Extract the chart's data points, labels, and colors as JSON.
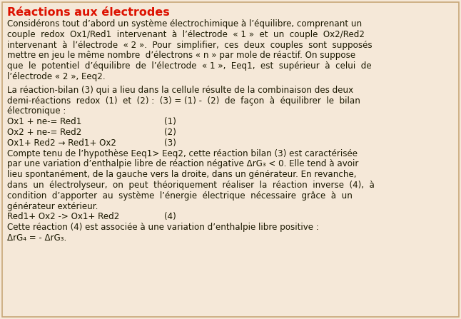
{
  "title": "Réactions aux électrodes",
  "title_color": "#dd1100",
  "bg_color": "#f5e8d8",
  "text_color": "#1a1800",
  "border_color": "#c8a878",
  "font_size": 8.6,
  "title_font_size": 11.5,
  "lines": [
    {
      "type": "title",
      "text": "Réactions aux électrodes",
      "indent": 0
    },
    {
      "type": "body",
      "text": "Considérons tout d’abord un système électrochimique à l’équilibre, comprenant un",
      "indent": 0
    },
    {
      "type": "body",
      "text": "couple  redox  Ox1/Red1  intervenant  à  l’électrode  « 1 »  et  un  couple  Ox2/Red2",
      "indent": 0
    },
    {
      "type": "body",
      "text": "intervenant  à  l’électrode  « 2 ».  Pour  simplifier,  ces  deux  couples  sont  supposés",
      "indent": 0
    },
    {
      "type": "body",
      "text": "mettre en jeu le même nombre  d’électrons « n » par mole de réactif. On suppose",
      "indent": 0
    },
    {
      "type": "body",
      "text": "que  le  potentiel  d’équilibre  de  l’électrode  « 1 »,  Eeq1,  est  supérieur  à  celui  de",
      "indent": 0
    },
    {
      "type": "body",
      "text": "l’électrode « 2 », Eeq2.",
      "indent": 0
    },
    {
      "type": "gap",
      "text": "",
      "indent": 0
    },
    {
      "type": "body",
      "text": "La réaction-bilan (3) qui a lieu dans la cellule résulte de la combinaison des deux",
      "indent": 0
    },
    {
      "type": "body",
      "text": "demi-réactions  redox  (1)  et  (2) :  (3) = (1) -  (2)  de  façon  à  équilibrer  le  bilan",
      "indent": 0
    },
    {
      "type": "body",
      "text": "électronique :",
      "indent": 0
    },
    {
      "type": "eq",
      "text": "Ox1 + ne-= Red1",
      "num": "(1)",
      "indent": 0
    },
    {
      "type": "eq",
      "text": "Ox2 + ne-= Red2",
      "num": "(2)",
      "indent": 0
    },
    {
      "type": "eq",
      "text": "Ox1+ Red2 → Red1+ Ox2",
      "num": "(3)",
      "indent": 0
    },
    {
      "type": "body",
      "text": "Compte tenu de l’hypothèse Eeq1> Eeq2, cette réaction bilan (3) est caractérisée",
      "indent": 0
    },
    {
      "type": "body",
      "text": "par une variation d’enthalpie libre de réaction négative ΔrG₃ < 0. Elle tend à avoir",
      "indent": 0
    },
    {
      "type": "body",
      "text": "lieu spontanément, de la gauche vers la droite, dans un générateur. En revanche,",
      "indent": 0
    },
    {
      "type": "body",
      "text": "dans  un  électrolyseur,  on  peut  théoriquement  réaliser  la  réaction  inverse  (4),  à",
      "indent": 0
    },
    {
      "type": "body",
      "text": "condition  d’apporter  au  système  l’énergie  électrique  nécessaire  grâce  à  un",
      "indent": 0
    },
    {
      "type": "body",
      "text": "générateur extérieur.",
      "indent": 0
    },
    {
      "type": "eq",
      "text": "Red1+ Ox2 -> Ox1+ Red2",
      "num": "(4)",
      "indent": 0
    },
    {
      "type": "body",
      "text": "Cette réaction (4) est associée à une variation d’enthalpie libre positive :",
      "indent": 0
    },
    {
      "type": "body",
      "text": "ΔrG₄ = - ΔrG₃.",
      "indent": 0
    }
  ]
}
